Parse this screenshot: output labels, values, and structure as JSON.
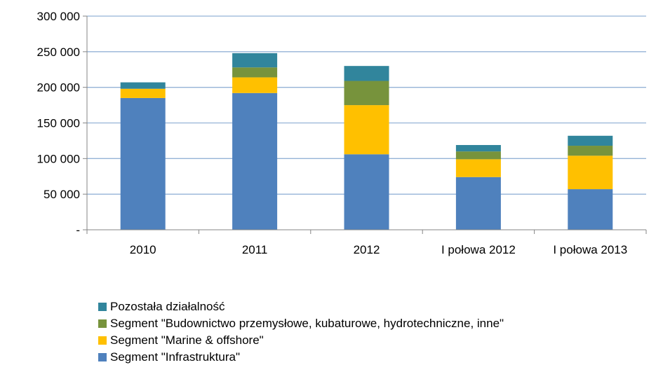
{
  "chart_data": {
    "type": "bar",
    "stacked": true,
    "title": "",
    "xlabel": "",
    "ylabel": "",
    "ylim": [
      0,
      300000
    ],
    "ytick_values": [
      0,
      50000,
      100000,
      150000,
      200000,
      250000,
      300000
    ],
    "ytick_labels": [
      "-",
      "50 000",
      "100 000",
      "150 000",
      "200 000",
      "250 000",
      "300 000"
    ],
    "categories": [
      "2010",
      "2011",
      "2012",
      "I połowa 2012",
      "I połowa 2013"
    ],
    "grid": true,
    "legend_position": "bottom-left",
    "series": [
      {
        "name": "Segment \"Infrastruktura\"",
        "color": "#4F81BD",
        "values": [
          185000,
          192000,
          106000,
          74000,
          57000
        ]
      },
      {
        "name": "Segment \"Marine  & offshore\"",
        "color": "#FFC000",
        "values": [
          13000,
          22000,
          69000,
          25000,
          47000
        ]
      },
      {
        "name": "Segment \"Budownictwo przemysłowe, kubaturowe, hydrotechniczne, inne\"",
        "color": "#77933C",
        "values": [
          0,
          14000,
          34000,
          11000,
          14000
        ]
      },
      {
        "name": "Pozostała działalność",
        "color": "#31859C",
        "values": [
          9000,
          20000,
          21000,
          9000,
          14000
        ]
      }
    ]
  }
}
